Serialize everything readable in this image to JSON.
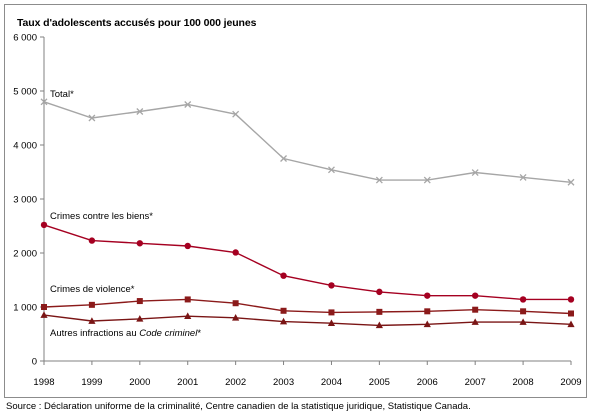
{
  "chart_data": {
    "type": "line",
    "title": "Taux d'adolescents accusés pour 100 000 jeunes",
    "x": [
      "1998",
      "1999",
      "2000",
      "2001",
      "2002",
      "2003",
      "2004",
      "2005",
      "2006",
      "2007",
      "2008",
      "2009"
    ],
    "ylim": [
      0,
      6000
    ],
    "yticks": [
      0,
      1000,
      2000,
      3000,
      4000,
      5000,
      6000
    ],
    "ytick_labels": [
      "0",
      "1 000",
      "2 000",
      "3 000",
      "4 000",
      "5 000",
      "6 000"
    ],
    "grid": false,
    "series": [
      {
        "name": "Total*",
        "marker": "x",
        "color": "#a6a6a6",
        "values": [
          4800,
          4500,
          4620,
          4750,
          4570,
          3750,
          3540,
          3350,
          3350,
          3490,
          3400,
          3310
        ]
      },
      {
        "name": "Crimes contre les biens*",
        "marker": "circle",
        "color": "#a50021",
        "values": [
          2520,
          2230,
          2180,
          2130,
          2010,
          1580,
          1400,
          1280,
          1210,
          1210,
          1140,
          1140
        ]
      },
      {
        "name": "Crimes de violence*",
        "marker": "square",
        "color": "#8b1a1a",
        "values": [
          1000,
          1040,
          1110,
          1140,
          1070,
          930,
          900,
          910,
          920,
          950,
          920,
          880
        ]
      },
      {
        "name_prefix": "Autres infractions au ",
        "name_italic": "Code criminel",
        "name_suffix": "*",
        "marker": "triangle",
        "color": "#7a1515",
        "values": [
          850,
          740,
          780,
          830,
          800,
          730,
          700,
          660,
          680,
          720,
          720,
          680
        ]
      }
    ]
  },
  "source": "Source : Déclaration uniforme de la criminalité, Centre canadien de la statistique juridique, Statistique Canada."
}
